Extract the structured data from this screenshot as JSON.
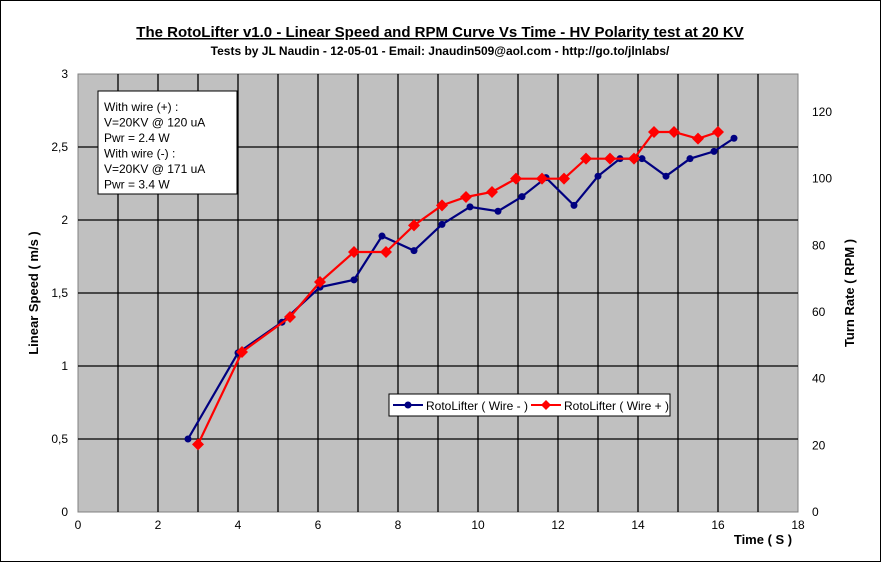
{
  "chart_data": {
    "type": "line",
    "title": "The RotoLifter v1.0 -  Linear Speed and RPM Curve Vs Time - HV Polarity test at 20 KV",
    "subtitle": "Tests by JL Naudin - 12-05-01 - Email: Jnaudin509@aol.com - http://go.to/jlnlabs/",
    "xlabel": "Time ( S )",
    "ylabel": "Linear Speed ( m/s )",
    "y2label": "Turn Rate ( RPM )",
    "xlim": [
      0,
      18
    ],
    "ylim": [
      0,
      3
    ],
    "y2lim": [
      0,
      130
    ],
    "xticks": [
      "0",
      "2",
      "4",
      "6",
      "8",
      "10",
      "12",
      "14",
      "16",
      "18"
    ],
    "yticks": [
      "0",
      "0,5",
      "1",
      "1,5",
      "2",
      "2,5",
      "3"
    ],
    "y2ticks": [
      "0",
      "20",
      "40",
      "60",
      "80",
      "100",
      "120"
    ],
    "grid": true,
    "annotation": [
      "With wire (+) :",
      "V=20KV @ 120 uA",
      "Pwr = 2.4 W",
      "With wire (-) :",
      "V=20KV @ 171 uA",
      "Pwr = 3.4 W"
    ],
    "legend_position": "bottom-center",
    "series": [
      {
        "name": "RotoLifter ( Wire - )",
        "axis": "left",
        "color": "#000080",
        "marker": "circle",
        "x": [
          2.75,
          4.0,
          5.1,
          6.05,
          6.9,
          7.6,
          8.4,
          9.1,
          9.8,
          10.5,
          11.1,
          11.7,
          12.4,
          13.0,
          13.55,
          14.1,
          14.7,
          15.3,
          15.9,
          16.4
        ],
        "y": [
          0.5,
          1.09,
          1.3,
          1.54,
          1.59,
          1.89,
          1.79,
          1.97,
          2.09,
          2.06,
          2.16,
          2.29,
          2.1,
          2.3,
          2.42,
          2.42,
          2.3,
          2.42,
          2.47,
          2.56
        ]
      },
      {
        "name": "RotoLifter ( Wire + )",
        "axis": "right",
        "color": "#ff0000",
        "marker": "diamond",
        "x": [
          3.0,
          4.1,
          5.3,
          6.05,
          6.9,
          7.7,
          8.4,
          9.1,
          9.7,
          10.35,
          10.95,
          11.6,
          12.15,
          12.7,
          13.3,
          13.9,
          14.4,
          14.9,
          15.5,
          16.0
        ],
        "y": [
          20.3,
          48,
          58.5,
          69,
          78,
          78,
          86,
          92,
          94.5,
          96,
          100,
          100,
          100,
          106,
          106,
          106,
          114,
          114,
          112,
          114
        ]
      }
    ]
  }
}
